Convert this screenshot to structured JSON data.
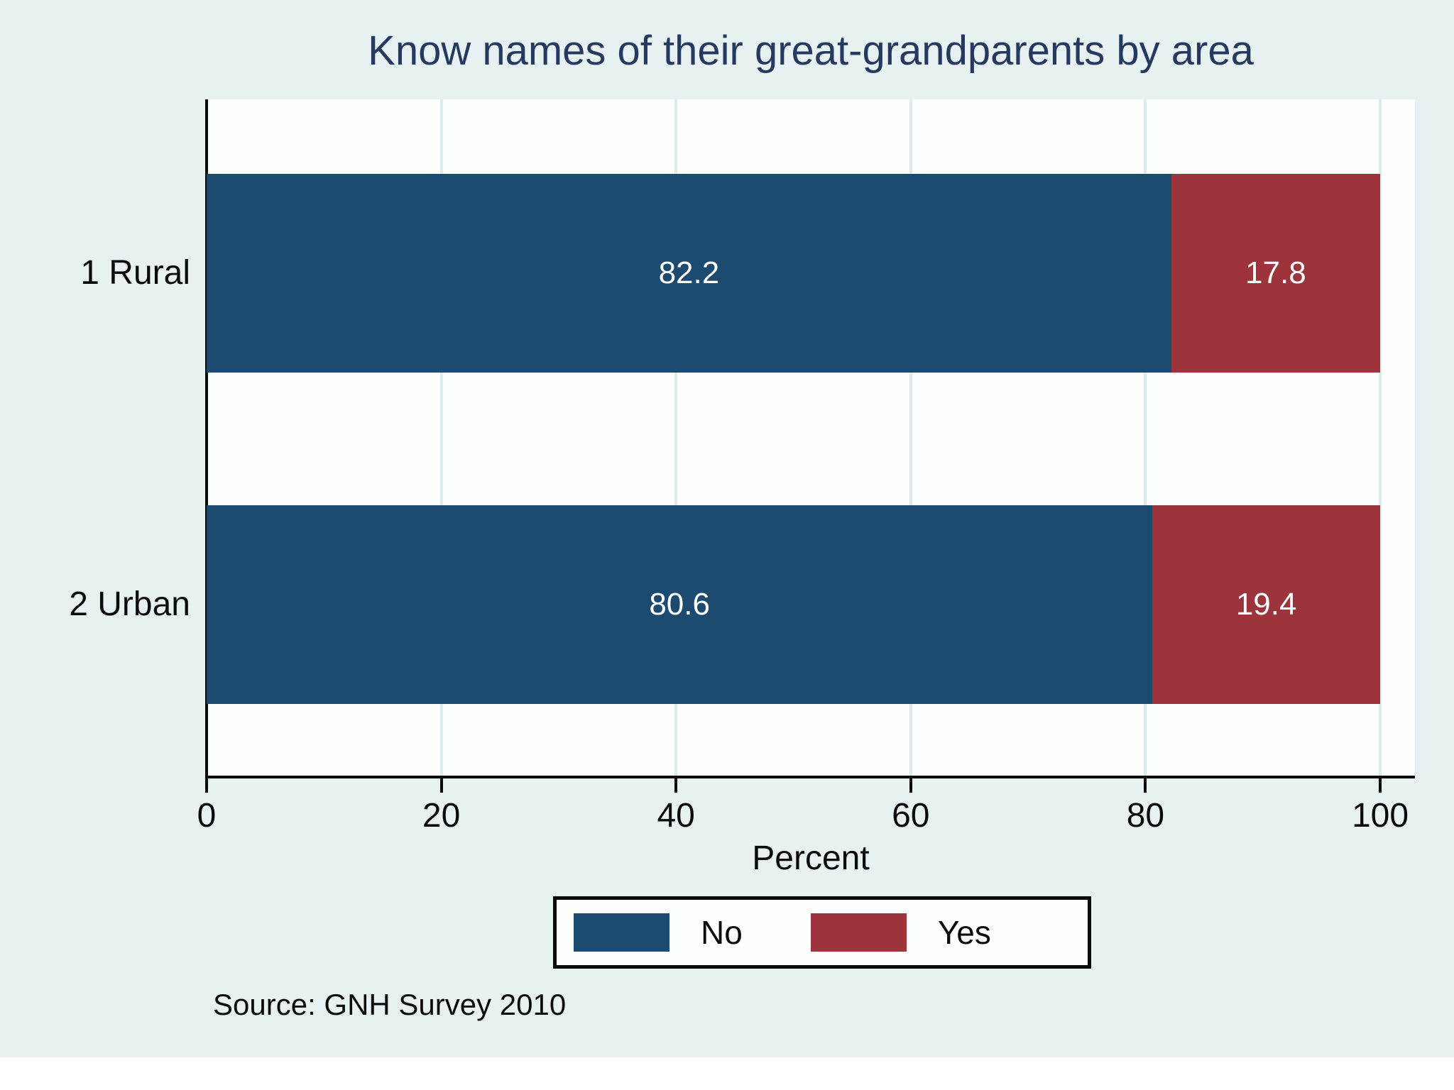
{
  "chart_data": {
    "type": "bar",
    "orientation": "horizontal",
    "stacked": true,
    "title": "Know names of their great-grandparents by area",
    "xlabel": "Percent",
    "note": "Source: GNH Survey 2010",
    "categories": [
      "1 Rural",
      "2 Urban"
    ],
    "series": [
      {
        "name": "No",
        "color": "#1d4a6f",
        "values": [
          82.2,
          80.6
        ]
      },
      {
        "name": "Yes",
        "color": "#9d343c",
        "values": [
          17.8,
          19.4
        ]
      }
    ],
    "xticks": [
      0,
      20,
      40,
      60,
      80,
      100
    ],
    "xlim": [
      0,
      100
    ],
    "grid": true,
    "legend_position": "bottom",
    "bar_label_color": "#ffffff"
  },
  "colors": {
    "background": "#e8f1f1",
    "plot_background": "#fdfefe",
    "gridline": "#dcebeb",
    "axis": "#0b0b0b",
    "title_text": "#26395e",
    "no_bar": "#1d4a6f",
    "yes_bar": "#9d343c"
  }
}
